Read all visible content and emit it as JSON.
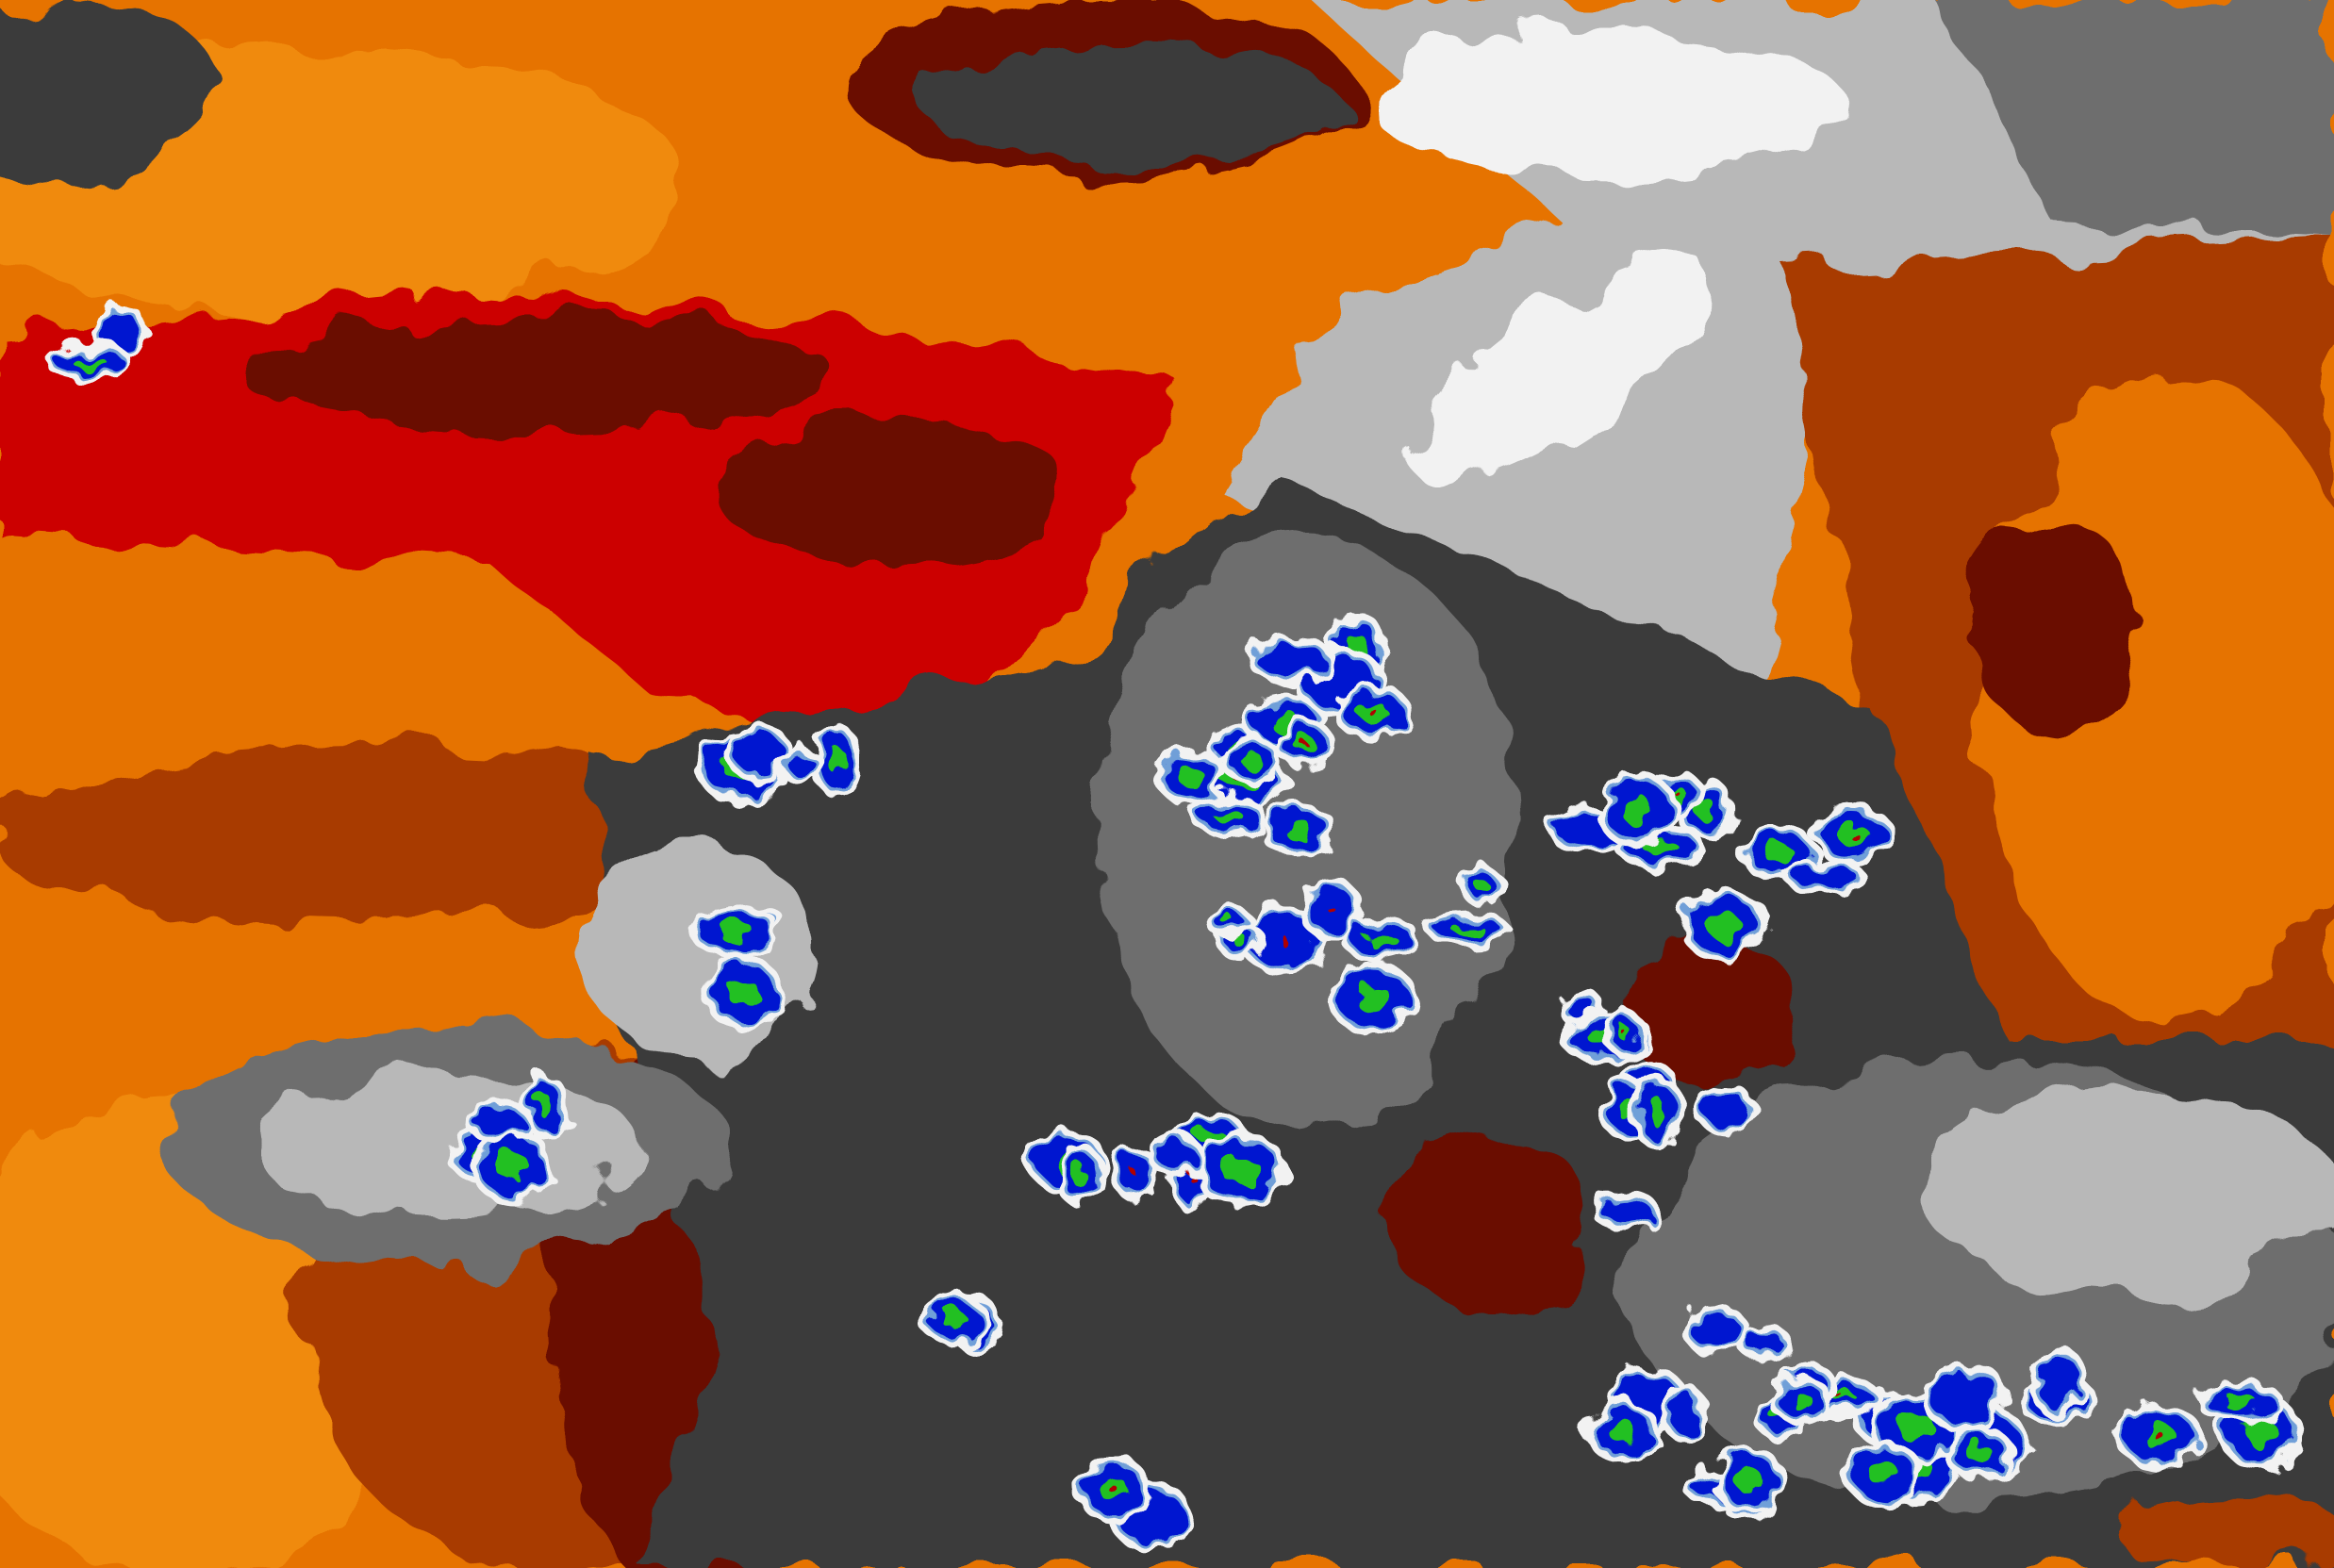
{
  "image": {
    "kind": "enhanced infrared satellite imagery",
    "palette": {
      "warm_surface": "#e67300",
      "light_orange": "#f08a10",
      "dark_orange": "#a83a00",
      "maroon": "#6a0a00",
      "red_band": "#cc0000",
      "dark_gray": "#3a3a3a",
      "mid_gray": "#6e6e6e",
      "light_gray": "#b8b8b8",
      "white": "#f2f2f2",
      "light_blue": "#6f9fd8",
      "blue": "#0018d0",
      "green": "#20c020",
      "core_red": "#b00000"
    }
  }
}
